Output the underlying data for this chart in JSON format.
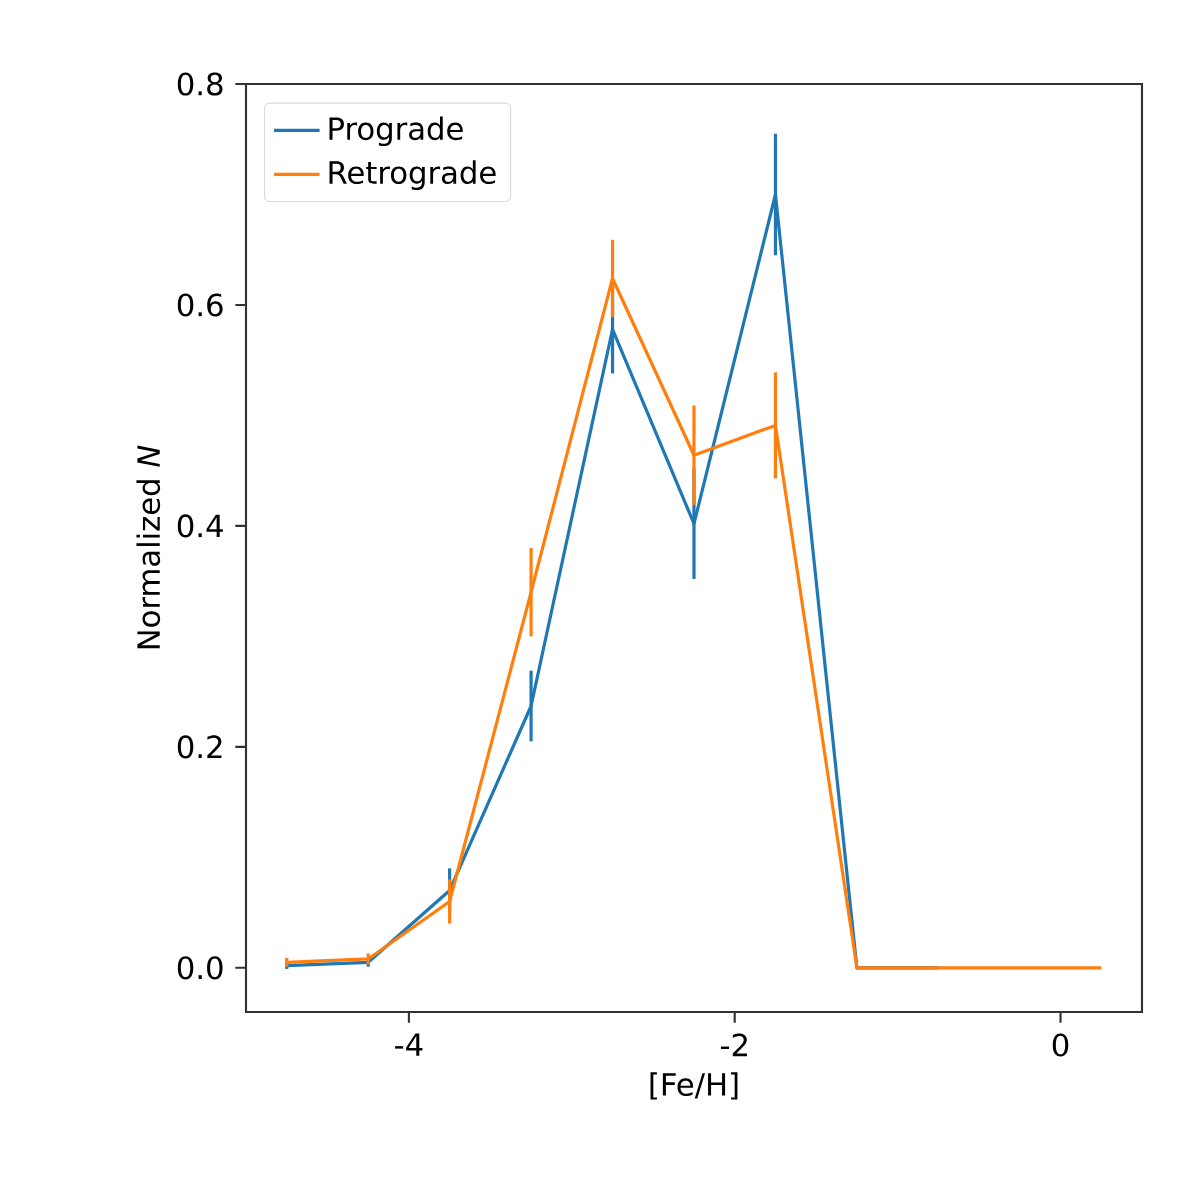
{
  "chart_data": {
    "type": "line",
    "xlabel": "[Fe/H]",
    "ylabel": "Normalized *N*",
    "x": [
      -4.75,
      -4.25,
      -3.75,
      -3.25,
      -2.75,
      -2.25,
      -1.75,
      -1.25,
      -0.75,
      -0.25,
      0.25
    ],
    "series": [
      {
        "name": "Prograde",
        "color": "#1f77b4",
        "values": [
          0.002,
          0.005,
          0.07,
          0.237,
          0.578,
          0.402,
          0.7,
          0,
          0,
          null,
          null
        ],
        "errors": [
          0.003,
          0.004,
          0.02,
          0.032,
          0.04,
          0.05,
          0.055,
          null,
          null,
          null,
          null
        ]
      },
      {
        "name": "Retrograde",
        "color": "#ff7f0e",
        "values": [
          0.005,
          0.008,
          0.06,
          0.34,
          0.624,
          0.464,
          0.491,
          0,
          0,
          0,
          0
        ],
        "errors": [
          0.004,
          0.005,
          0.02,
          0.04,
          0.035,
          0.045,
          0.048,
          null,
          null,
          null,
          null
        ]
      }
    ],
    "xlim": [
      -5,
      0.5
    ],
    "xticks": [
      -4,
      -2,
      0
    ],
    "ylim": [
      -0.04,
      0.8
    ],
    "yticks": [
      {
        "value": 0,
        "label": "0.0"
      },
      0.2,
      0.4,
      0.6,
      0.8
    ],
    "legend": "top left",
    "grid": false,
    "marker": "none",
    "line_style": "solid"
  }
}
